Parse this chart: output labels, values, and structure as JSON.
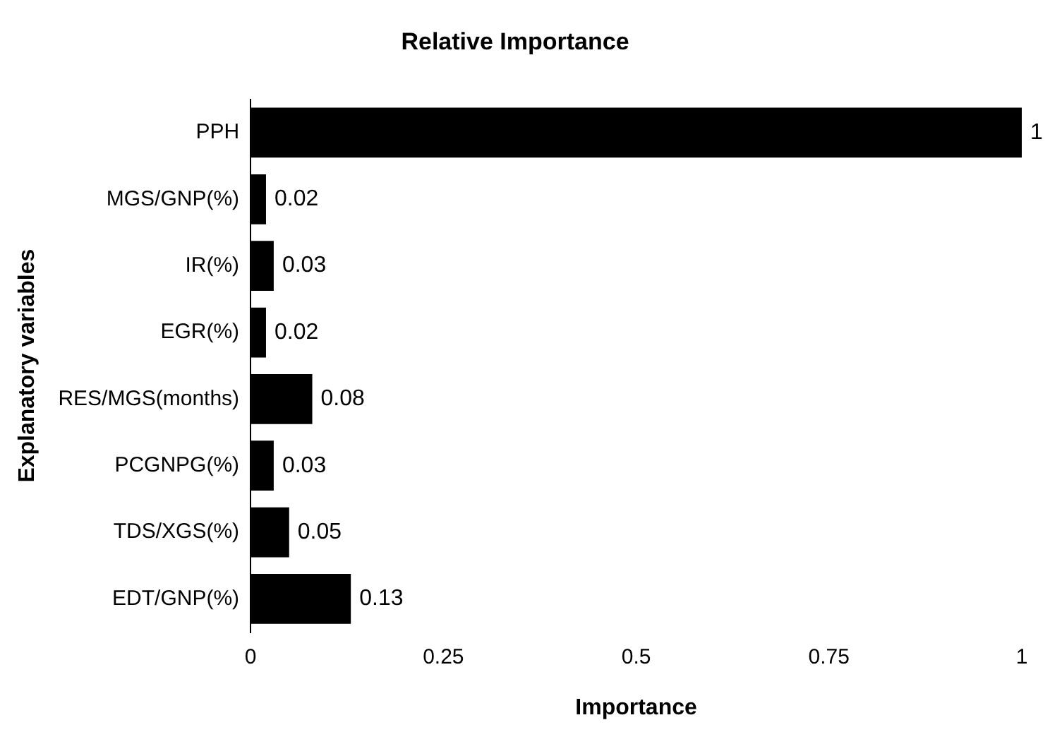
{
  "chart_data": {
    "type": "bar",
    "orientation": "horizontal",
    "title": "Relative Importance",
    "xlabel": "Importance",
    "ylabel": "Explanatory variables",
    "categories": [
      "PPH",
      "MGS/GNP(%)",
      "IR(%)",
      "EGR(%)",
      "RES/MGS(months)",
      "PCGNPG(%)",
      "TDS/XGS(%)",
      "EDT/GNP(%)"
    ],
    "values": [
      1,
      0.02,
      0.03,
      0.02,
      0.08,
      0.03,
      0.05,
      0.13
    ],
    "color": "#000000",
    "xlim": [
      0,
      1
    ],
    "xticks": [
      0,
      0.25,
      0.5,
      0.75,
      1
    ],
    "grid": false,
    "legend": false,
    "data_labels": true
  }
}
